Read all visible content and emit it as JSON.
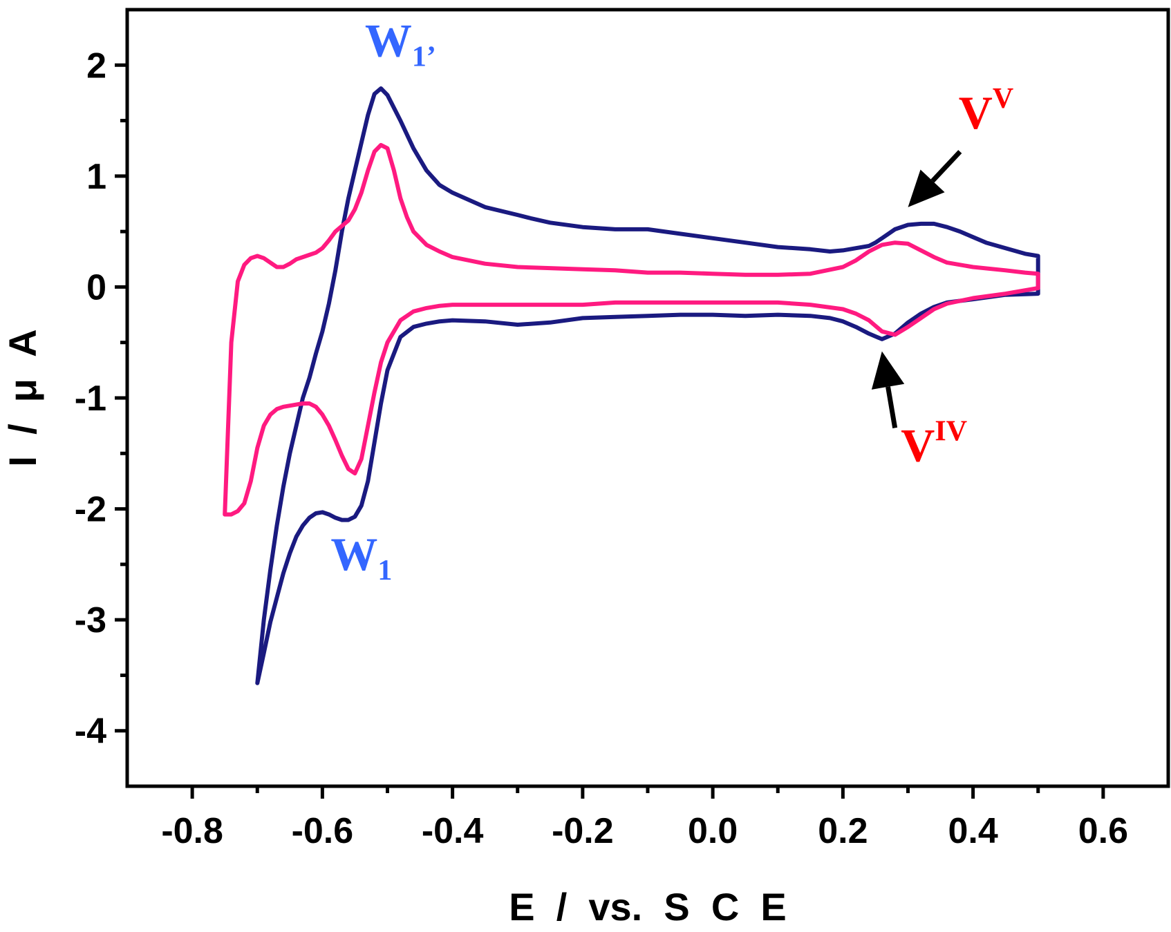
{
  "chart_data": {
    "type": "line",
    "title": "",
    "xlabel": "E  /  vs.  S  C  E",
    "ylabel": "I  /  μ  A",
    "xlim": [
      -0.9,
      0.7
    ],
    "ylim": [
      -4.5,
      2.5
    ],
    "xticks": [
      -0.8,
      -0.6,
      -0.4,
      -0.2,
      0.0,
      0.2,
      0.4,
      0.6
    ],
    "xtick_labels": [
      "-0.8",
      "-0.6",
      "-0.4",
      "-0.2",
      "0.0",
      "0.2",
      "0.4",
      "0.6"
    ],
    "yticks": [
      -4,
      -3,
      -2,
      -1,
      0,
      1,
      2
    ],
    "ytick_labels": [
      "-4",
      "-3",
      "-2",
      "-1",
      "0",
      "1",
      "2"
    ],
    "grid": false,
    "legend": null,
    "series": [
      {
        "name": "navy voltammogram",
        "color": "#1a1a80",
        "x": [
          -0.7,
          -0.69,
          -0.68,
          -0.67,
          -0.66,
          -0.65,
          -0.64,
          -0.63,
          -0.62,
          -0.61,
          -0.6,
          -0.59,
          -0.58,
          -0.57,
          -0.56,
          -0.55,
          -0.54,
          -0.53,
          -0.52,
          -0.51,
          -0.5,
          -0.48,
          -0.46,
          -0.44,
          -0.42,
          -0.4,
          -0.35,
          -0.3,
          -0.25,
          -0.2,
          -0.15,
          -0.1,
          -0.05,
          0.0,
          0.05,
          0.1,
          0.15,
          0.18,
          0.2,
          0.22,
          0.24,
          0.26,
          0.28,
          0.3,
          0.32,
          0.34,
          0.36,
          0.4,
          0.45,
          0.5,
          0.5,
          0.48,
          0.45,
          0.42,
          0.4,
          0.38,
          0.36,
          0.34,
          0.32,
          0.3,
          0.28,
          0.27,
          0.26,
          0.25,
          0.24,
          0.22,
          0.2,
          0.18,
          0.15,
          0.1,
          0.05,
          0.0,
          -0.05,
          -0.1,
          -0.15,
          -0.2,
          -0.25,
          -0.28,
          -0.3,
          -0.35,
          -0.4,
          -0.42,
          -0.44,
          -0.46,
          -0.48,
          -0.5,
          -0.51,
          -0.52,
          -0.53,
          -0.54,
          -0.55,
          -0.56,
          -0.57,
          -0.58,
          -0.59,
          -0.6,
          -0.61,
          -0.62,
          -0.63,
          -0.64,
          -0.65,
          -0.66,
          -0.67,
          -0.68,
          -0.69,
          -0.7
        ],
        "y": [
          -3.57,
          -3.3,
          -3.02,
          -2.8,
          -2.58,
          -2.4,
          -2.25,
          -2.15,
          -2.08,
          -2.04,
          -2.03,
          -2.05,
          -2.08,
          -2.1,
          -2.1,
          -2.07,
          -1.97,
          -1.75,
          -1.4,
          -1.05,
          -0.75,
          -0.45,
          -0.36,
          -0.33,
          -0.31,
          -0.3,
          -0.31,
          -0.34,
          -0.32,
          -0.28,
          -0.27,
          -0.26,
          -0.25,
          -0.25,
          -0.26,
          -0.25,
          -0.26,
          -0.28,
          -0.31,
          -0.36,
          -0.42,
          -0.47,
          -0.42,
          -0.32,
          -0.24,
          -0.18,
          -0.14,
          -0.11,
          -0.07,
          -0.06,
          0.28,
          0.3,
          0.35,
          0.4,
          0.45,
          0.5,
          0.54,
          0.57,
          0.57,
          0.56,
          0.52,
          0.48,
          0.44,
          0.4,
          0.37,
          0.35,
          0.33,
          0.32,
          0.34,
          0.36,
          0.4,
          0.44,
          0.48,
          0.52,
          0.52,
          0.54,
          0.58,
          0.62,
          0.65,
          0.72,
          0.85,
          0.92,
          1.05,
          1.25,
          1.5,
          1.73,
          1.79,
          1.74,
          1.55,
          1.3,
          1.05,
          0.8,
          0.5,
          0.15,
          -0.15,
          -0.4,
          -0.6,
          -0.82,
          -1.0,
          -1.25,
          -1.5,
          -1.8,
          -2.15,
          -2.55,
          -3.0,
          -3.57
        ]
      },
      {
        "name": "magenta voltammogram",
        "color": "#ff1a80",
        "x": [
          -0.75,
          -0.74,
          -0.73,
          -0.72,
          -0.71,
          -0.7,
          -0.69,
          -0.68,
          -0.67,
          -0.66,
          -0.65,
          -0.64,
          -0.63,
          -0.62,
          -0.61,
          -0.6,
          -0.59,
          -0.58,
          -0.57,
          -0.56,
          -0.55,
          -0.54,
          -0.53,
          -0.52,
          -0.51,
          -0.5,
          -0.48,
          -0.46,
          -0.44,
          -0.42,
          -0.4,
          -0.35,
          -0.3,
          -0.25,
          -0.2,
          -0.15,
          -0.1,
          -0.05,
          0.0,
          0.05,
          0.1,
          0.15,
          0.2,
          0.22,
          0.24,
          0.25,
          0.26,
          0.28,
          0.3,
          0.32,
          0.34,
          0.36,
          0.4,
          0.45,
          0.5,
          0.5,
          0.48,
          0.45,
          0.4,
          0.36,
          0.34,
          0.32,
          0.3,
          0.28,
          0.26,
          0.24,
          0.22,
          0.2,
          0.15,
          0.1,
          0.05,
          0.0,
          -0.05,
          -0.1,
          -0.15,
          -0.2,
          -0.25,
          -0.3,
          -0.35,
          -0.4,
          -0.42,
          -0.44,
          -0.46,
          -0.47,
          -0.48,
          -0.49,
          -0.5,
          -0.51,
          -0.52,
          -0.53,
          -0.54,
          -0.55,
          -0.56,
          -0.57,
          -0.58,
          -0.59,
          -0.6,
          -0.61,
          -0.62,
          -0.63,
          -0.64,
          -0.65,
          -0.66,
          -0.67,
          -0.68,
          -0.69,
          -0.7,
          -0.71,
          -0.72,
          -0.73,
          -0.74,
          -0.75
        ],
        "y": [
          -2.05,
          -2.05,
          -2.02,
          -1.95,
          -1.75,
          -1.45,
          -1.25,
          -1.15,
          -1.1,
          -1.08,
          -1.07,
          -1.06,
          -1.05,
          -1.05,
          -1.08,
          -1.15,
          -1.25,
          -1.38,
          -1.52,
          -1.64,
          -1.68,
          -1.55,
          -1.25,
          -0.95,
          -0.68,
          -0.5,
          -0.3,
          -0.22,
          -0.19,
          -0.17,
          -0.16,
          -0.16,
          -0.16,
          -0.16,
          -0.16,
          -0.14,
          -0.14,
          -0.14,
          -0.14,
          -0.14,
          -0.14,
          -0.16,
          -0.2,
          -0.24,
          -0.3,
          -0.35,
          -0.4,
          -0.43,
          -0.36,
          -0.28,
          -0.2,
          -0.15,
          -0.1,
          -0.06,
          -0.01,
          0.12,
          0.13,
          0.15,
          0.18,
          0.22,
          0.27,
          0.33,
          0.39,
          0.4,
          0.38,
          0.32,
          0.24,
          0.18,
          0.12,
          0.11,
          0.11,
          0.12,
          0.13,
          0.13,
          0.15,
          0.16,
          0.17,
          0.18,
          0.21,
          0.27,
          0.32,
          0.38,
          0.5,
          0.63,
          0.8,
          1.05,
          1.25,
          1.28,
          1.22,
          1.05,
          0.85,
          0.7,
          0.6,
          0.55,
          0.5,
          0.42,
          0.35,
          0.31,
          0.29,
          0.27,
          0.25,
          0.21,
          0.18,
          0.18,
          0.22,
          0.26,
          0.28,
          0.26,
          0.2,
          0.05,
          -0.5,
          -2.05
        ]
      }
    ],
    "annotations": [
      {
        "base": "W",
        "sub": "1’",
        "sup": "",
        "x": -0.48,
        "y": 2.08,
        "color": "#3366ff"
      },
      {
        "base": "W",
        "sub": "1",
        "sup": "",
        "x": -0.54,
        "y": -2.55,
        "color": "#3366ff"
      },
      {
        "base": "V",
        "sub": "",
        "sup": "V",
        "x": 0.42,
        "y": 1.43,
        "color": "#ff0000"
      },
      {
        "base": "V",
        "sub": "",
        "sup": "IV",
        "x": 0.34,
        "y": -1.57,
        "color": "#ff0000"
      }
    ],
    "arrows": [
      {
        "from": [
          0.38,
          1.22
        ],
        "to": [
          0.3,
          0.72
        ]
      },
      {
        "from": [
          0.28,
          -1.27
        ],
        "to": [
          0.26,
          -0.58
        ]
      }
    ]
  }
}
